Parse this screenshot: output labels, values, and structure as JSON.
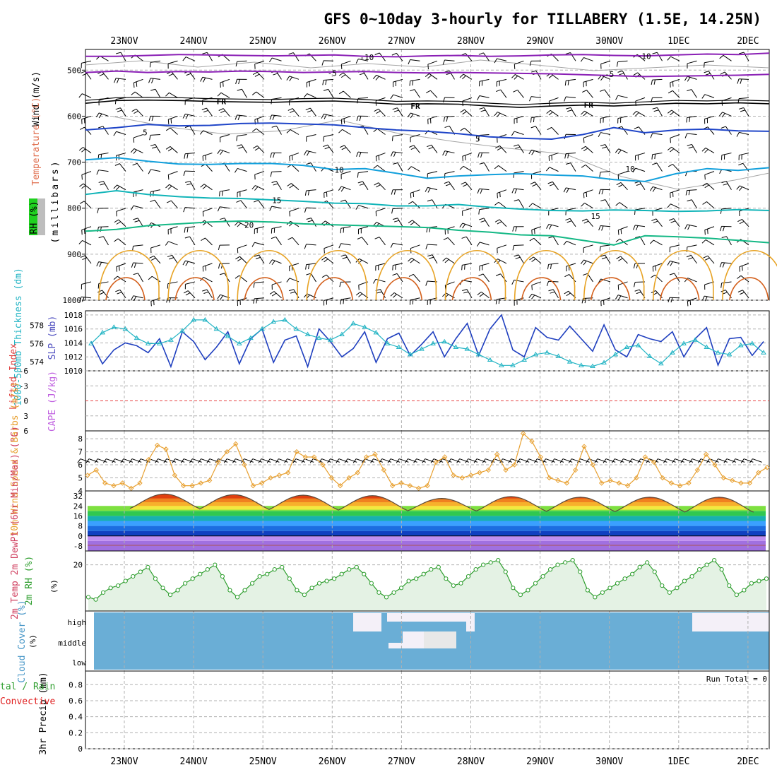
{
  "title": "GFS 0~10day 3-hourly for TILLABERY (1.5E, 14.25N)",
  "dates": [
    "23NOV",
    "24NOV",
    "25NOV",
    "26NOV",
    "27NOV",
    "28NOV",
    "29NOV",
    "30NOV",
    "1DEC",
    "2DEC"
  ],
  "colors": {
    "purple": "#8a1fb5",
    "black": "#000000",
    "blue": "#1f45c8",
    "lightblue": "#12a0dc",
    "teal": "#11b4b8",
    "green": "#14b885",
    "orange": "#e7a325",
    "darkorange": "#d4601c",
    "grey": "#a5a5a5",
    "barb": "#000000",
    "slp": "#1f3fbf",
    "thick": "#22b4c4",
    "li": "#e64040",
    "cape": "#c060e0",
    "wind10": "#e8a030",
    "rh2": "#2e9e2e",
    "cloud": "#6aaed6",
    "cloudclear": "#f4f0f8",
    "rain": "#e02020"
  },
  "chart_data": [
    {
      "type": "line",
      "panel": "upper-air",
      "ylabel_wind": "Wind (m/s)",
      "ylabel_temp": "Temperature (°C)",
      "ylabel_rh": "RH (%)",
      "ylabel_pressure": "(millibars)",
      "y_ticks": [
        500,
        600,
        700,
        800,
        900,
        1000
      ],
      "ylim": [
        1000,
        455
      ],
      "series": [
        {
          "name": "-10",
          "color_key": "purple",
          "pressure": [
            470,
            470,
            468,
            466,
            467,
            468,
            469,
            468,
            467,
            470,
            471,
            469,
            468,
            470,
            469,
            467,
            466,
            468,
            469,
            467,
            465,
            466,
            463
          ]
        },
        {
          "name": "-5",
          "color_key": "purple",
          "pressure": [
            505,
            502,
            505,
            503,
            504,
            502,
            503,
            505,
            504,
            503,
            505,
            506,
            505,
            506,
            507,
            508,
            510,
            512,
            514,
            513,
            512,
            511,
            509
          ]
        },
        {
          "name": "FR",
          "color_key": "black",
          "pressure": [
            572,
            566,
            565,
            566,
            568,
            569,
            570,
            568,
            567,
            570,
            574,
            573,
            574,
            578,
            581,
            578,
            576,
            578,
            575,
            572,
            573,
            571,
            573
          ]
        },
        {
          "name": "5",
          "color_key": "blue",
          "pressure": [
            630,
            625,
            618,
            621,
            620,
            616,
            615,
            617,
            619,
            625,
            630,
            633,
            638,
            645,
            648,
            650,
            640,
            625,
            636,
            630,
            628,
            632,
            633
          ]
        },
        {
          "name": "10",
          "color_key": "lightblue",
          "pressure": [
            695,
            690,
            698,
            704,
            705,
            703,
            703,
            707,
            716,
            714,
            724,
            735,
            730,
            727,
            725,
            728,
            730,
            738,
            742,
            725,
            714,
            718,
            712
          ]
        },
        {
          "name": "15",
          "color_key": "teal",
          "pressure": [
            770,
            762,
            770,
            775,
            778,
            779,
            782,
            785,
            789,
            790,
            795,
            795,
            792,
            798,
            802,
            805,
            806,
            804,
            805,
            807,
            806,
            803,
            805
          ]
        },
        {
          "name": "20",
          "color_key": "green",
          "pressure": [
            850,
            846,
            838,
            834,
            830,
            828,
            830,
            834,
            836,
            838,
            840,
            842,
            848,
            852,
            858,
            860,
            870,
            880,
            860,
            862,
            865,
            870,
            875
          ]
        }
      ],
      "series_labels": [
        {
          "text": "-10",
          "day": 3.5,
          "p": 470,
          "color_key": "purple"
        },
        {
          "text": "-10",
          "day": 7.5,
          "p": 468,
          "color_key": "purple"
        },
        {
          "text": "-5",
          "day": 3.0,
          "p": 505,
          "color_key": "purple"
        },
        {
          "text": "-5",
          "day": 7.0,
          "p": 507,
          "color_key": "purple"
        },
        {
          "text": "FR",
          "day": 1.4,
          "p": 566,
          "color_key": "black"
        },
        {
          "text": "FR",
          "day": 4.2,
          "p": 576,
          "color_key": "black"
        },
        {
          "text": "FR",
          "day": 6.7,
          "p": 574,
          "color_key": "black"
        },
        {
          "text": "5",
          "day": 0.3,
          "p": 634,
          "color_key": "blue"
        },
        {
          "text": "5",
          "day": 5.1,
          "p": 648,
          "color_key": "blue"
        },
        {
          "text": "10",
          "day": 3.1,
          "p": 715,
          "color_key": "lightblue"
        },
        {
          "text": "10",
          "day": 7.3,
          "p": 713,
          "color_key": "lightblue"
        },
        {
          "text": "15",
          "day": 2.2,
          "p": 781,
          "color_key": "teal"
        },
        {
          "text": "15",
          "day": 6.8,
          "p": 816,
          "color_key": "teal"
        },
        {
          "text": "20",
          "day": 1.8,
          "p": 835,
          "color_key": "green"
        }
      ]
    },
    {
      "type": "line",
      "panel": "thickness-slp",
      "ylabel_left": "1000-500mb Thickness (dm)",
      "ylabel_right": "SLP (mb)",
      "left_ticks": [
        574,
        576,
        578
      ],
      "right_ticks": [
        1010,
        1012,
        1014,
        1016,
        1018
      ],
      "left_lim": [
        573,
        579.6
      ],
      "right_lim": [
        1010,
        1018.6
      ],
      "series": [
        {
          "name": "SLP",
          "axis": "right",
          "color_key": "slp",
          "values": [
            1014.2,
            1011.0,
            1013.0,
            1014.0,
            1013.6,
            1012.6,
            1014.6,
            1010.6,
            1015.6,
            1014.2,
            1011.6,
            1013.4,
            1015.6,
            1011.0,
            1014.6,
            1016.0,
            1011.2,
            1014.4,
            1015.0,
            1010.6,
            1016.0,
            1014.2,
            1012.0,
            1013.2,
            1015.6,
            1011.2,
            1014.6,
            1015.4,
            1012.2,
            1013.8,
            1015.6,
            1012.0,
            1014.6,
            1016.8,
            1012.2,
            1016.0,
            1018.0,
            1013.0,
            1012.0,
            1016.2,
            1014.8,
            1014.4,
            1016.4,
            1014.6,
            1012.8,
            1016.6,
            1013.0,
            1012.0,
            1015.2,
            1014.6,
            1014.2,
            1015.6,
            1012.0,
            1014.6,
            1016.2,
            1010.8,
            1014.6,
            1014.8,
            1012.2,
            1014.2
          ]
        },
        {
          "name": "Thickness",
          "axis": "left",
          "color_key": "thick",
          "values": [
            576.0,
            577.2,
            577.8,
            577.6,
            576.6,
            576.0,
            576.0,
            576.4,
            577.4,
            578.6,
            578.6,
            577.6,
            576.8,
            576.0,
            576.6,
            577.6,
            578.4,
            578.6,
            577.6,
            577.0,
            576.6,
            576.4,
            577.0,
            578.2,
            577.8,
            577.2,
            576.0,
            575.6,
            574.8,
            575.4,
            576.0,
            576.2,
            575.6,
            575.4,
            574.8,
            574.2,
            573.6,
            573.6,
            574.2,
            574.8,
            575.0,
            574.6,
            574.0,
            573.6,
            573.5,
            573.9,
            574.8,
            575.6,
            575.8,
            574.6,
            573.8,
            575.0,
            576.0,
            576.4,
            575.6,
            575.0,
            574.8,
            575.8,
            576.0,
            575.0
          ]
        }
      ]
    },
    {
      "type": "line",
      "panel": "stability",
      "ylabel_left": "Lifted Index",
      "ylabel_right": "CAPE (J/kg)",
      "y_ticks": [
        -6,
        -3,
        0,
        3,
        6
      ],
      "ylim": [
        6,
        -6
      ],
      "lifted_index_zero_line": 0
    },
    {
      "type": "line",
      "panel": "wind10m",
      "ylabel": "10m Wind Speed & Barbs (m/s)",
      "y_ticks": [
        4,
        5,
        6,
        7,
        8
      ],
      "ylim": [
        4,
        8.6
      ],
      "values": [
        5.2,
        5.6,
        4.6,
        4.4,
        4.6,
        4.2,
        4.6,
        6.4,
        7.5,
        7.2,
        5.2,
        4.4,
        4.4,
        4.6,
        4.8,
        6.2,
        7.0,
        7.6,
        6.0,
        4.4,
        4.6,
        5.0,
        5.2,
        5.4,
        7.0,
        6.6,
        6.6,
        6.0,
        5.0,
        4.4,
        5.0,
        5.4,
        6.6,
        6.8,
        5.6,
        4.4,
        4.6,
        4.4,
        4.2,
        4.4,
        6.2,
        6.6,
        5.2,
        5.0,
        5.2,
        5.4,
        5.6,
        6.8,
        5.6,
        6.0,
        8.4,
        7.8,
        6.6,
        5.0,
        4.8,
        4.6,
        5.6,
        7.4,
        6.0,
        4.6,
        4.8,
        4.6,
        4.4,
        5.0,
        6.6,
        6.2,
        5.0,
        4.6,
        4.4,
        4.6,
        5.6,
        6.8,
        6.0,
        5.0,
        4.8,
        4.6,
        4.6,
        5.4,
        5.8
      ]
    },
    {
      "type": "area",
      "panel": "temp2m",
      "ylabel": "2m Temp 2m DewPt (6hr Min/Max) (°C)",
      "y_ticks": [
        -8,
        0,
        8,
        16,
        24,
        32
      ],
      "ylim": [
        -12,
        36
      ],
      "temperature_max_by_day": [
        33.5,
        33.0,
        32.6,
        32.2,
        30.0,
        31.5,
        31.0,
        31.0,
        31.0
      ],
      "temperature_min_by_day": [
        22.0,
        21.5,
        21.0,
        20.5,
        20.0,
        20.0,
        19.5,
        19.5,
        19.0
      ],
      "dewpoint": -7.5
    },
    {
      "type": "line",
      "panel": "rh2m",
      "ylabel": "2m RH (%)",
      "y_ticks": [
        20
      ],
      "ylim": [
        0,
        26
      ],
      "values": [
        6,
        5,
        8,
        10,
        11,
        13,
        15,
        17,
        19,
        14,
        10,
        7,
        9,
        12,
        14,
        16,
        18,
        20,
        15,
        9,
        6,
        9,
        12,
        15,
        16,
        18,
        19,
        14,
        9,
        7,
        10,
        12,
        13,
        14,
        16,
        18,
        19,
        16,
        12,
        8,
        6,
        8,
        10,
        13,
        14,
        16,
        18,
        19,
        14,
        11,
        12,
        15,
        18,
        20,
        21,
        22,
        17,
        10,
        7,
        9,
        12,
        15,
        18,
        20,
        21,
        22,
        17,
        9,
        6,
        8,
        10,
        12,
        14,
        16,
        19,
        21,
        17,
        11,
        8,
        10,
        13,
        15,
        18,
        20,
        22,
        18,
        11,
        7,
        9,
        12,
        13,
        14
      ]
    },
    {
      "type": "heatmap",
      "panel": "cloud",
      "ylabel": "Cloud Cover (%)",
      "levels": [
        "high",
        "middle",
        "low"
      ]
    },
    {
      "type": "bar",
      "panel": "precip",
      "ylabel": "3hr Precip (mm)",
      "ylabel_left": "tal / Rain",
      "ylabel_left2": "Convective",
      "y_ticks": [
        0,
        0.2,
        0.4,
        0.6,
        0.8
      ],
      "ylim": [
        0,
        0.97
      ],
      "run_total": "Run Total = 0"
    }
  ]
}
